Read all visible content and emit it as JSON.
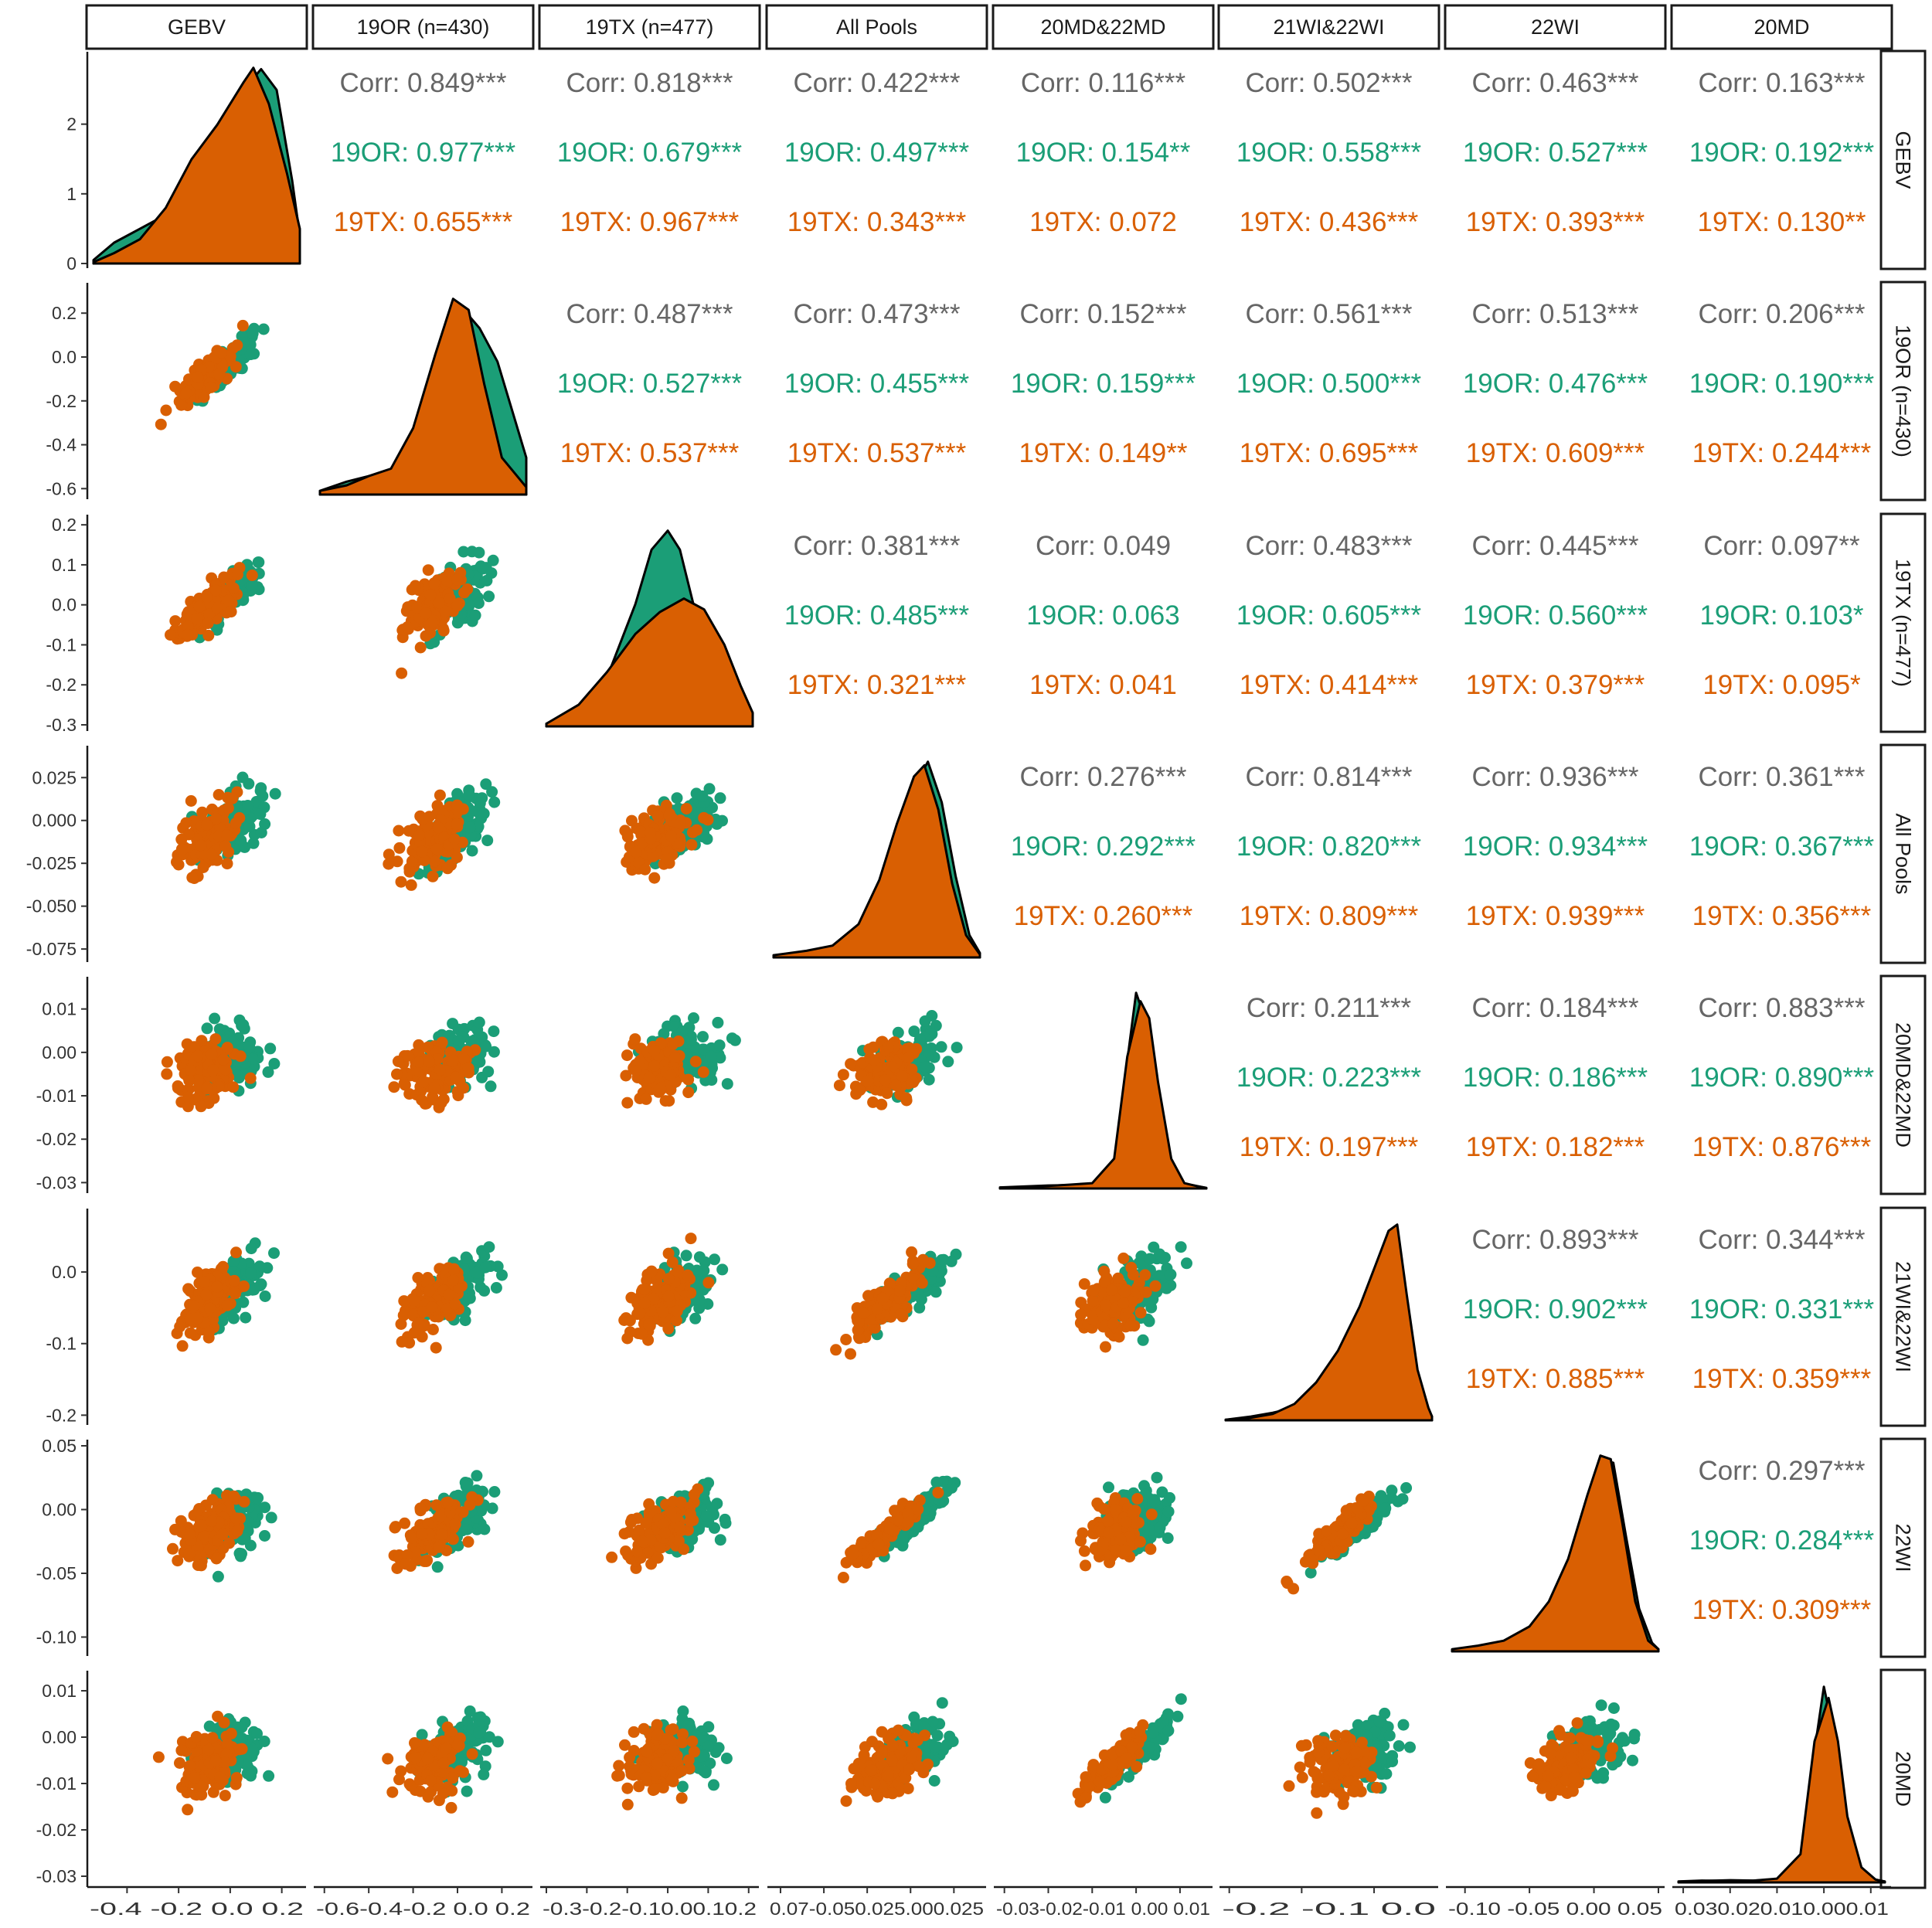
{
  "chart_data": {
    "type": "scatter-matrix",
    "variables": [
      "GEBV",
      "19OR (n=430)",
      "19TX (n=477)",
      "All Pools",
      "20MD&22MD",
      "21WI&22WI",
      "22WI",
      "20MD"
    ],
    "groups": [
      {
        "name": "19OR",
        "color": "#1b9e77"
      },
      {
        "name": "19TX",
        "color": "#d95f02"
      }
    ],
    "colors": {
      "overall": "#666666",
      "19OR": "#1b9e77",
      "19TX": "#d95f02"
    },
    "ticks": [
      [
        "-0.4",
        "-0.2",
        "0.0",
        "0.2"
      ],
      [
        "-0.6",
        "-0.4",
        "-0.2",
        "0.0",
        "0.2"
      ],
      [
        "-0.3",
        "-0.2",
        "-0.1",
        "0.0",
        "0.1",
        "0.2"
      ],
      [
        "-0.075",
        "-0.050",
        "-0.025",
        "0.000",
        "0.025"
      ],
      [
        "-0.03",
        "-0.02",
        "-0.01",
        "0.00",
        "0.01"
      ],
      [
        "-0.2",
        "-0.1",
        "0.0"
      ],
      [
        "-0.10",
        "-0.05",
        "0.00",
        "0.05"
      ],
      [
        "-0.03",
        "-0.02",
        "-0.01",
        "0.00",
        "0.01"
      ]
    ],
    "bottom_tick_labels": [
      [
        "-0.4",
        "-0.2",
        "0.0",
        "0.2"
      ],
      [
        "-0.6",
        "-0.4",
        "-0.2",
        "0.0",
        "0.2"
      ],
      [
        "-0.3",
        "-0.2",
        "-0.1",
        "0.0",
        "0.1",
        "0.2"
      ],
      [
        "-0.075",
        "-0.050",
        "-0.025",
        "0.000",
        "0.025"
      ],
      [
        "-0.03",
        "-0.02",
        "-0.01",
        "0.00",
        "0.01"
      ],
      [
        "-0.2",
        "-0.1",
        "0.0"
      ],
      [
        "-0.10",
        "-0.05",
        "0.00",
        "0.05"
      ],
      [
        "-0.03",
        "-0.02",
        "-0.01",
        "0.00",
        "0.01"
      ]
    ],
    "bottom_tick_display": [
      "-0.4 -0.2 0.0 0.2",
      "-0.6-0.4-0.2 0.0 0.2",
      "-0.3-0.2-0.10.00.10.2",
      "0.07-0.050.025.000.025",
      "-0.03-0.02-0.01 0.00 0.01",
      "-0.2 -0.1 0.0",
      "-0.10 -0.05 0.00 0.05",
      "0.030.020.010.000.01"
    ],
    "left_tick_labels": [
      [
        "0",
        "1",
        "2"
      ],
      [
        "-0.6",
        "-0.4",
        "-0.2",
        "0.0",
        "0.2"
      ],
      [
        "-0.3",
        "-0.2",
        "-0.1",
        "0.0",
        "0.1",
        "0.2"
      ],
      [
        "-0.075",
        "-0.050",
        "-0.025",
        "0.000",
        "0.025"
      ],
      [
        "-0.03",
        "-0.02",
        "-0.01",
        "0.00",
        "0.01"
      ],
      [
        "-0.2",
        "-0.1",
        "0.0"
      ],
      [
        "-0.10",
        "-0.05",
        "0.00",
        "0.05"
      ],
      [
        "-0.03",
        "-0.02",
        "-0.01",
        "0.00",
        "0.01"
      ]
    ],
    "diag_y_ticks": [
      "0",
      "1",
      "2"
    ],
    "diag_y_range": [
      0,
      2.95
    ],
    "ranges": [
      [
        -0.53,
        0.27
      ],
      [
        -0.62,
        0.31
      ],
      [
        -0.3,
        0.21
      ],
      [
        -0.079,
        0.04
      ],
      [
        -0.031,
        0.016
      ],
      [
        -0.205,
        0.08
      ],
      [
        -0.11,
        0.05
      ],
      [
        -0.031,
        0.013
      ]
    ],
    "scatter_spread": [
      0.55,
      0.55,
      0.6,
      0.6,
      0.55,
      0.6,
      0.6,
      0.55
    ],
    "correlations": {
      "0-1": {
        "corr": "Corr: 0.849***",
        "g1": "19OR: 0.977***",
        "g2": "19TX: 0.655***"
      },
      "0-2": {
        "corr": "Corr: 0.818***",
        "g1": "19OR: 0.679***",
        "g2": "19TX: 0.967***"
      },
      "0-3": {
        "corr": "Corr: 0.422***",
        "g1": "19OR: 0.497***",
        "g2": "19TX: 0.343***"
      },
      "0-4": {
        "corr": "Corr: 0.116***",
        "g1": "19OR: 0.154**",
        "g2": "19TX: 0.072"
      },
      "0-5": {
        "corr": "Corr: 0.502***",
        "g1": "19OR: 0.558***",
        "g2": "19TX: 0.436***"
      },
      "0-6": {
        "corr": "Corr: 0.463***",
        "g1": "19OR: 0.527***",
        "g2": "19TX: 0.393***"
      },
      "0-7": {
        "corr": "Corr: 0.163***",
        "g1": "19OR: 0.192***",
        "g2": "19TX: 0.130**"
      },
      "1-2": {
        "corr": "Corr: 0.487***",
        "g1": "19OR: 0.527***",
        "g2": "19TX: 0.537***"
      },
      "1-3": {
        "corr": "Corr: 0.473***",
        "g1": "19OR: 0.455***",
        "g2": "19TX: 0.537***"
      },
      "1-4": {
        "corr": "Corr: 0.152***",
        "g1": "19OR: 0.159***",
        "g2": "19TX: 0.149**"
      },
      "1-5": {
        "corr": "Corr: 0.561***",
        "g1": "19OR: 0.500***",
        "g2": "19TX: 0.695***"
      },
      "1-6": {
        "corr": "Corr: 0.513***",
        "g1": "19OR: 0.476***",
        "g2": "19TX: 0.609***"
      },
      "1-7": {
        "corr": "Corr: 0.206***",
        "g1": "19OR: 0.190***",
        "g2": "19TX: 0.244***"
      },
      "2-3": {
        "corr": "Corr: 0.381***",
        "g1": "19OR: 0.485***",
        "g2": "19TX: 0.321***"
      },
      "2-4": {
        "corr": "Corr: 0.049",
        "g1": "19OR: 0.063",
        "g2": "19TX: 0.041"
      },
      "2-5": {
        "corr": "Corr: 0.483***",
        "g1": "19OR: 0.605***",
        "g2": "19TX: 0.414***"
      },
      "2-6": {
        "corr": "Corr: 0.445***",
        "g1": "19OR: 0.560***",
        "g2": "19TX: 0.379***"
      },
      "2-7": {
        "corr": "Corr: 0.097**",
        "g1": "19OR: 0.103*",
        "g2": "19TX: 0.095*"
      },
      "3-4": {
        "corr": "Corr: 0.276***",
        "g1": "19OR: 0.292***",
        "g2": "19TX: 0.260***"
      },
      "3-5": {
        "corr": "Corr: 0.814***",
        "g1": "19OR: 0.820***",
        "g2": "19TX: 0.809***"
      },
      "3-6": {
        "corr": "Corr: 0.936***",
        "g1": "19OR: 0.934***",
        "g2": "19TX: 0.939***"
      },
      "3-7": {
        "corr": "Corr: 0.361***",
        "g1": "19OR: 0.367***",
        "g2": "19TX: 0.356***"
      },
      "4-5": {
        "corr": "Corr: 0.211***",
        "g1": "19OR: 0.223***",
        "g2": "19TX: 0.197***"
      },
      "4-6": {
        "corr": "Corr: 0.184***",
        "g1": "19OR: 0.186***",
        "g2": "19TX: 0.182***"
      },
      "4-7": {
        "corr": "Corr: 0.883***",
        "g1": "19OR: 0.890***",
        "g2": "19TX: 0.876***"
      },
      "5-6": {
        "corr": "Corr: 0.893***",
        "g1": "19OR: 0.902***",
        "g2": "19TX: 0.885***"
      },
      "5-7": {
        "corr": "Corr: 0.344***",
        "g1": "19OR: 0.331***",
        "g2": "19TX: 0.359***"
      },
      "6-7": {
        "corr": "Corr: 0.297***",
        "g1": "19OR: 0.284***",
        "g2": "19TX: 0.309***"
      }
    },
    "diag_densities": [
      {
        "19OR": [
          [
            -0.53,
            0.05
          ],
          [
            -0.45,
            0.3
          ],
          [
            -0.35,
            0.5
          ],
          [
            -0.25,
            0.7
          ],
          [
            -0.15,
            1.3
          ],
          [
            -0.05,
            1.8
          ],
          [
            0.05,
            2.5
          ],
          [
            0.12,
            2.8
          ],
          [
            0.18,
            2.5
          ],
          [
            0.24,
            1.2
          ],
          [
            0.27,
            0.4
          ]
        ],
        "19TX": [
          [
            -0.53,
            0.02
          ],
          [
            -0.45,
            0.15
          ],
          [
            -0.35,
            0.35
          ],
          [
            -0.25,
            0.8
          ],
          [
            -0.15,
            1.5
          ],
          [
            -0.05,
            2.0
          ],
          [
            0.05,
            2.6
          ],
          [
            0.09,
            2.82
          ],
          [
            0.15,
            2.3
          ],
          [
            0.22,
            1.3
          ],
          [
            0.27,
            0.5
          ]
        ]
      },
      {
        "19OR": [
          [
            -0.62,
            0.1
          ],
          [
            -0.5,
            0.35
          ],
          [
            -0.4,
            0.5
          ],
          [
            -0.3,
            0.6
          ],
          [
            -0.2,
            1.5
          ],
          [
            -0.1,
            3.5
          ],
          [
            0.0,
            5.2
          ],
          [
            0.1,
            4.5
          ],
          [
            0.18,
            3.6
          ],
          [
            0.25,
            2.2
          ],
          [
            0.31,
            1.0
          ]
        ],
        "19TX": [
          [
            -0.62,
            0.1
          ],
          [
            -0.5,
            0.25
          ],
          [
            -0.4,
            0.5
          ],
          [
            -0.3,
            0.7
          ],
          [
            -0.2,
            1.8
          ],
          [
            -0.1,
            3.8
          ],
          [
            -0.02,
            5.3
          ],
          [
            0.05,
            5.0
          ],
          [
            0.12,
            3.0
          ],
          [
            0.2,
            1.0
          ],
          [
            0.31,
            0.2
          ]
        ]
      },
      {
        "19OR": [
          [
            -0.3,
            0.1
          ],
          [
            -0.22,
            0.6
          ],
          [
            -0.15,
            1.8
          ],
          [
            -0.08,
            4.5
          ],
          [
            -0.04,
            6.5
          ],
          [
            0.0,
            7.2
          ],
          [
            0.03,
            6.5
          ],
          [
            0.08,
            3.5
          ],
          [
            0.13,
            1.5
          ],
          [
            0.18,
            0.6
          ],
          [
            0.21,
            0.2
          ]
        ],
        "19TX": [
          [
            -0.3,
            0.1
          ],
          [
            -0.22,
            0.8
          ],
          [
            -0.15,
            2.0
          ],
          [
            -0.08,
            3.4
          ],
          [
            -0.02,
            4.2
          ],
          [
            0.04,
            4.7
          ],
          [
            0.09,
            4.3
          ],
          [
            0.14,
            3.0
          ],
          [
            0.18,
            1.5
          ],
          [
            0.21,
            0.5
          ]
        ]
      },
      {
        "19OR": [
          [
            -0.079,
            0.2
          ],
          [
            -0.06,
            0.8
          ],
          [
            -0.045,
            1.5
          ],
          [
            -0.03,
            4.0
          ],
          [
            -0.018,
            9.0
          ],
          [
            -0.008,
            16.0
          ],
          [
            0.002,
            23.0
          ],
          [
            0.01,
            26.5
          ],
          [
            0.018,
            21.0
          ],
          [
            0.026,
            11.0
          ],
          [
            0.034,
            3.0
          ],
          [
            0.04,
            0.6
          ]
        ],
        "19TX": [
          [
            -0.079,
            0.3
          ],
          [
            -0.06,
            0.9
          ],
          [
            -0.045,
            1.6
          ],
          [
            -0.03,
            4.5
          ],
          [
            -0.018,
            10.5
          ],
          [
            -0.008,
            18.0
          ],
          [
            0.002,
            24.5
          ],
          [
            0.008,
            26.0
          ],
          [
            0.016,
            20.0
          ],
          [
            0.024,
            10.0
          ],
          [
            0.032,
            3.0
          ],
          [
            0.04,
            0.4
          ]
        ]
      },
      {
        "19OR": [
          [
            -0.031,
            0.5
          ],
          [
            -0.025,
            1.0
          ],
          [
            -0.02,
            1.4
          ],
          [
            -0.015,
            1.6
          ],
          [
            -0.01,
            2.2
          ],
          [
            -0.005,
            12.0
          ],
          [
            -0.002,
            60.0
          ],
          [
            0.0,
            92.0
          ],
          [
            0.002,
            80.0
          ],
          [
            0.004,
            45.0
          ],
          [
            0.007,
            12.0
          ],
          [
            0.01,
            2.5
          ],
          [
            0.013,
            1.5
          ],
          [
            0.016,
            0.3
          ]
        ],
        "19TX": [
          [
            -0.031,
            0.4
          ],
          [
            -0.025,
            0.8
          ],
          [
            -0.02,
            1.2
          ],
          [
            -0.015,
            1.8
          ],
          [
            -0.01,
            2.5
          ],
          [
            -0.005,
            14.0
          ],
          [
            -0.002,
            62.0
          ],
          [
            0.001,
            88.0
          ],
          [
            0.003,
            80.0
          ],
          [
            0.005,
            50.0
          ],
          [
            0.008,
            14.0
          ],
          [
            0.011,
            2.5
          ],
          [
            0.014,
            1.0
          ],
          [
            0.016,
            0.3
          ]
        ]
      },
      {
        "19OR": [
          [
            -0.205,
            0.05
          ],
          [
            -0.17,
            0.3
          ],
          [
            -0.14,
            0.6
          ],
          [
            -0.11,
            1.0
          ],
          [
            -0.08,
            2.5
          ],
          [
            -0.05,
            5.0
          ],
          [
            -0.02,
            8.5
          ],
          [
            0.0,
            11.5
          ],
          [
            0.02,
            14.5
          ],
          [
            0.035,
            12.0
          ],
          [
            0.05,
            6.0
          ],
          [
            0.065,
            2.0
          ],
          [
            0.08,
            0.3
          ]
        ],
        "19TX": [
          [
            -0.205,
            0.05
          ],
          [
            -0.17,
            0.2
          ],
          [
            -0.14,
            0.5
          ],
          [
            -0.11,
            1.3
          ],
          [
            -0.08,
            3.0
          ],
          [
            -0.05,
            5.5
          ],
          [
            -0.02,
            9.0
          ],
          [
            0.0,
            12.0
          ],
          [
            0.02,
            15.0
          ],
          [
            0.032,
            15.5
          ],
          [
            0.045,
            10.0
          ],
          [
            0.06,
            4.0
          ],
          [
            0.075,
            1.0
          ],
          [
            0.08,
            0.3
          ]
        ]
      },
      {
        "19OR": [
          [
            -0.11,
            0.2
          ],
          [
            -0.09,
            0.6
          ],
          [
            -0.07,
            1.2
          ],
          [
            -0.05,
            3.0
          ],
          [
            -0.035,
            6.0
          ],
          [
            -0.02,
            12.0
          ],
          [
            -0.005,
            21.0
          ],
          [
            0.005,
            27.0
          ],
          [
            0.015,
            26.5
          ],
          [
            0.025,
            16.0
          ],
          [
            0.035,
            6.0
          ],
          [
            0.045,
            1.2
          ],
          [
            0.05,
            0.3
          ]
        ],
        "19TX": [
          [
            -0.11,
            0.3
          ],
          [
            -0.09,
            0.8
          ],
          [
            -0.07,
            1.5
          ],
          [
            -0.05,
            3.5
          ],
          [
            -0.035,
            7.0
          ],
          [
            -0.02,
            13.0
          ],
          [
            -0.005,
            22.0
          ],
          [
            0.005,
            27.5
          ],
          [
            0.013,
            27.0
          ],
          [
            0.022,
            18.0
          ],
          [
            0.032,
            7.0
          ],
          [
            0.042,
            1.5
          ],
          [
            0.05,
            0.3
          ]
        ]
      },
      {
        "19OR": [
          [
            -0.031,
            0.5
          ],
          [
            -0.026,
            1.0
          ],
          [
            -0.02,
            0.8
          ],
          [
            -0.015,
            1.0
          ],
          [
            -0.01,
            1.5
          ],
          [
            -0.005,
            12.0
          ],
          [
            -0.002,
            70.0
          ],
          [
            0.0,
            104.0
          ],
          [
            0.002,
            80.0
          ],
          [
            0.004,
            40.0
          ],
          [
            0.007,
            9.0
          ],
          [
            0.01,
            2.0
          ],
          [
            0.013,
            0.5
          ]
        ],
        "19TX": [
          [
            -0.031,
            0.4
          ],
          [
            -0.026,
            0.8
          ],
          [
            -0.02,
            1.2
          ],
          [
            -0.015,
            1.0
          ],
          [
            -0.01,
            2.0
          ],
          [
            -0.005,
            15.0
          ],
          [
            -0.002,
            75.0
          ],
          [
            0.001,
            98.0
          ],
          [
            0.003,
            75.0
          ],
          [
            0.005,
            35.0
          ],
          [
            0.008,
            8.0
          ],
          [
            0.011,
            1.5
          ],
          [
            0.013,
            0.5
          ]
        ]
      }
    ]
  }
}
